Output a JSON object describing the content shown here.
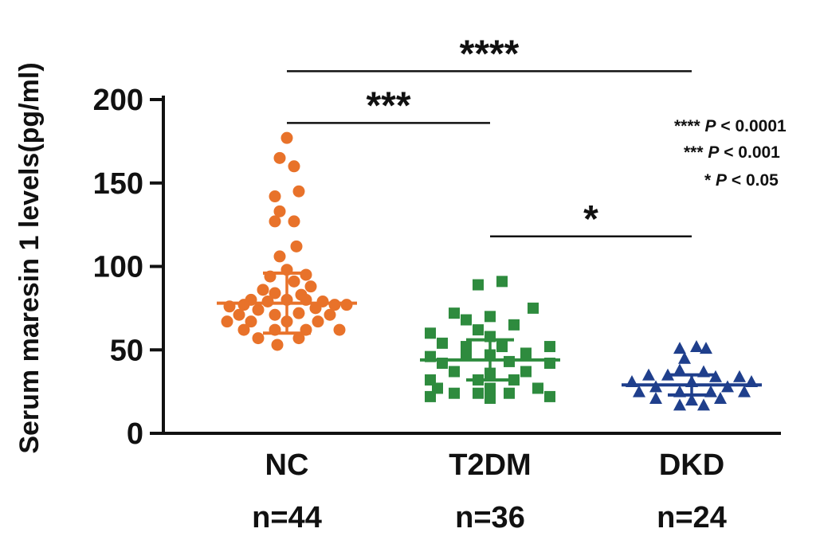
{
  "chart_data": {
    "type": "scatter",
    "title": "",
    "xlabel": "",
    "ylabel": "Serum maresin 1 levels(pg/ml)",
    "ylim": [
      0,
      200
    ],
    "yticks": [
      "0",
      "50",
      "100",
      "150",
      "200"
    ],
    "categories": [
      "NC",
      "T2DM",
      "DKD"
    ],
    "series": [
      {
        "name": "NC",
        "n_label": "n=44",
        "color": "#E8722A",
        "marker": "circle",
        "mean": 78,
        "sd_upper": 96,
        "sd_lower": 60,
        "points": [
          [
            0.0,
            177
          ],
          [
            -0.03,
            165
          ],
          [
            0.03,
            160
          ],
          [
            -0.05,
            142
          ],
          [
            0.05,
            145
          ],
          [
            -0.03,
            133
          ],
          [
            0.03,
            127
          ],
          [
            -0.05,
            127
          ],
          [
            0.04,
            112
          ],
          [
            -0.03,
            106
          ],
          [
            0.0,
            98
          ],
          [
            -0.07,
            94
          ],
          [
            0.08,
            95
          ],
          [
            0.03,
            91
          ],
          [
            -0.1,
            86
          ],
          [
            0.1,
            88
          ],
          [
            -0.05,
            84
          ],
          [
            0.06,
            83
          ],
          [
            -0.15,
            80
          ],
          [
            -0.08,
            79
          ],
          [
            0.0,
            80
          ],
          [
            0.08,
            80
          ],
          [
            0.15,
            79
          ],
          [
            -0.24,
            76
          ],
          [
            -0.18,
            77
          ],
          [
            0.2,
            77
          ],
          [
            0.25,
            77
          ],
          [
            -0.12,
            74
          ],
          [
            0.12,
            75
          ],
          [
            -0.2,
            71
          ],
          [
            -0.05,
            71
          ],
          [
            0.05,
            72
          ],
          [
            0.18,
            71
          ],
          [
            -0.25,
            67
          ],
          [
            -0.15,
            67
          ],
          [
            0.0,
            67
          ],
          [
            0.13,
            67
          ],
          [
            -0.18,
            62
          ],
          [
            -0.05,
            62
          ],
          [
            0.08,
            62
          ],
          [
            0.22,
            62
          ],
          [
            -0.12,
            57
          ],
          [
            0.05,
            57
          ],
          [
            -0.04,
            53
          ]
        ]
      },
      {
        "name": "T2DM",
        "n_label": "n=36",
        "color": "#2E8B3E",
        "marker": "square",
        "mean": 44,
        "sd_upper": 56,
        "sd_lower": 32,
        "points": [
          [
            0.05,
            91
          ],
          [
            -0.05,
            89
          ],
          [
            0.18,
            75
          ],
          [
            -0.15,
            72
          ],
          [
            -0.1,
            68
          ],
          [
            0.0,
            70
          ],
          [
            0.1,
            65
          ],
          [
            -0.25,
            60
          ],
          [
            -0.05,
            62
          ],
          [
            0.0,
            58
          ],
          [
            0.25,
            52
          ],
          [
            -0.2,
            54
          ],
          [
            -0.1,
            52
          ],
          [
            0.05,
            52
          ],
          [
            -0.25,
            46
          ],
          [
            -0.1,
            47
          ],
          [
            0.0,
            47
          ],
          [
            0.15,
            48
          ],
          [
            0.25,
            42
          ],
          [
            -0.2,
            42
          ],
          [
            0.08,
            43
          ],
          [
            -0.15,
            37
          ],
          [
            0.0,
            36
          ],
          [
            0.15,
            37
          ],
          [
            -0.25,
            32
          ],
          [
            -0.05,
            32
          ],
          [
            0.1,
            32
          ],
          [
            -0.22,
            27
          ],
          [
            0.0,
            27
          ],
          [
            0.2,
            27
          ],
          [
            -0.15,
            24
          ],
          [
            -0.05,
            24
          ],
          [
            0.08,
            24
          ],
          [
            0.25,
            22
          ],
          [
            -0.25,
            22
          ],
          [
            0.0,
            21
          ]
        ]
      },
      {
        "name": "DKD",
        "n_label": "n=24",
        "color": "#1F3F8C",
        "marker": "triangle",
        "mean": 29,
        "sd_upper": 35,
        "sd_lower": 23,
        "points": [
          [
            0.02,
            52
          ],
          [
            -0.05,
            51
          ],
          [
            0.06,
            51
          ],
          [
            -0.03,
            45
          ],
          [
            -0.05,
            38
          ],
          [
            0.05,
            37
          ],
          [
            -0.18,
            35
          ],
          [
            -0.1,
            35
          ],
          [
            0.1,
            34
          ],
          [
            0.2,
            34
          ],
          [
            -0.25,
            31
          ],
          [
            0.0,
            31
          ],
          [
            0.25,
            31
          ],
          [
            -0.15,
            28
          ],
          [
            0.15,
            28
          ],
          [
            -0.22,
            25
          ],
          [
            -0.05,
            25
          ],
          [
            0.08,
            25
          ],
          [
            0.22,
            25
          ],
          [
            -0.15,
            21
          ],
          [
            0.0,
            20
          ],
          [
            0.12,
            21
          ],
          [
            -0.05,
            17
          ],
          [
            0.05,
            17
          ]
        ]
      }
    ],
    "comparisons": [
      {
        "from": "NC",
        "to": "DKD",
        "y": 217,
        "label": "****"
      },
      {
        "from": "NC",
        "to": "T2DM",
        "y": 186,
        "label": "***"
      },
      {
        "from": "T2DM",
        "to": "DKD",
        "y": 118,
        "label": "*"
      }
    ],
    "legend": [
      {
        "stars": "****",
        "p": "P",
        "text": "< 0.0001"
      },
      {
        "stars": "***",
        "p": "P",
        "text": "< 0.001"
      },
      {
        "stars": "*",
        "p": "P",
        "text": "< 0.05"
      }
    ]
  }
}
